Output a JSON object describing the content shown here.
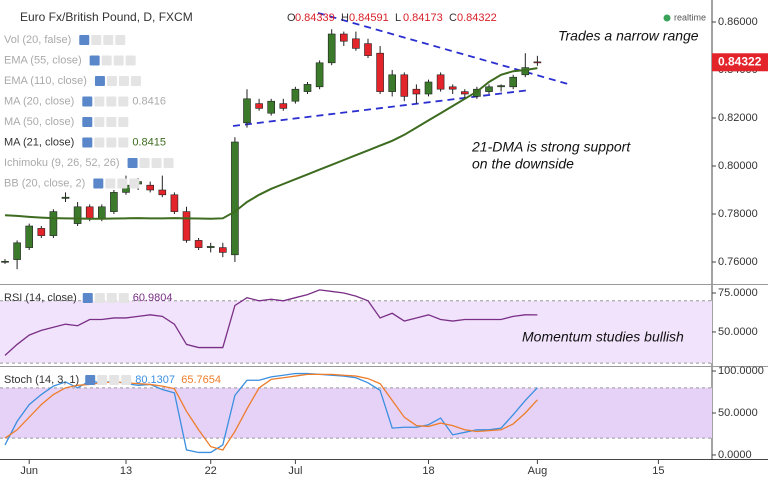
{
  "realtime": "realtime",
  "chart_data": [
    {
      "type": "candlestick",
      "title": "Euro Fx/British Pound, D, FXCM",
      "ohlc_labels": [
        "O",
        "H",
        "L",
        "C"
      ],
      "up_color": "#3b7a2b",
      "down_color": "#e3242b",
      "open": [
        0.76,
        0.761,
        0.766,
        0.774,
        0.771,
        0.7865,
        0.776,
        0.783,
        0.778,
        0.781,
        0.789,
        0.7925,
        0.792,
        0.79,
        0.788,
        0.781,
        0.769,
        0.766,
        0.766,
        0.763,
        0.818,
        0.826,
        0.822,
        0.826,
        0.827,
        0.831,
        0.833,
        0.843,
        0.855,
        0.853,
        0.851,
        0.847,
        0.831,
        0.838,
        0.832,
        0.83,
        0.838,
        0.833,
        0.831,
        0.829,
        0.831,
        0.833,
        0.833,
        0.838,
        0.84339
      ],
      "high": [
        0.7612,
        0.769,
        0.776,
        0.775,
        0.782,
        0.789,
        0.785,
        0.784,
        0.784,
        0.79,
        0.796,
        0.795,
        0.7935,
        0.796,
        0.789,
        0.783,
        0.77,
        0.768,
        0.768,
        0.812,
        0.832,
        0.828,
        0.828,
        0.828,
        0.833,
        0.835,
        0.844,
        0.857,
        0.856,
        0.856,
        0.853,
        0.85,
        0.84,
        0.839,
        0.834,
        0.836,
        0.839,
        0.834,
        0.832,
        0.833,
        0.834,
        0.834,
        0.838,
        0.847,
        0.84591
      ],
      "low": [
        0.7592,
        0.757,
        0.765,
        0.77,
        0.77,
        0.785,
        0.775,
        0.777,
        0.777,
        0.78,
        0.788,
        0.79,
        0.789,
        0.787,
        0.78,
        0.768,
        0.765,
        0.764,
        0.762,
        0.76,
        0.816,
        0.823,
        0.821,
        0.823,
        0.826,
        0.83,
        0.832,
        0.842,
        0.85,
        0.848,
        0.845,
        0.83,
        0.829,
        0.827,
        0.826,
        0.829,
        0.831,
        0.83,
        0.828,
        0.828,
        0.83,
        0.831,
        0.832,
        0.837,
        0.84173
      ],
      "close": [
        0.7603,
        0.768,
        0.775,
        0.771,
        0.781,
        0.787,
        0.783,
        0.778,
        0.783,
        0.789,
        0.792,
        0.7935,
        0.79,
        0.788,
        0.781,
        0.769,
        0.766,
        0.7665,
        0.764,
        0.81,
        0.828,
        0.824,
        0.827,
        0.824,
        0.832,
        0.834,
        0.843,
        0.855,
        0.852,
        0.849,
        0.846,
        0.831,
        0.838,
        0.829,
        0.83,
        0.835,
        0.832,
        0.832,
        0.83,
        0.832,
        0.833,
        0.8335,
        0.837,
        0.841,
        0.84322
      ],
      "ma_line": {
        "color": "#3d6b1f",
        "values": [
          0.7795,
          0.7792,
          0.7788,
          0.7785,
          0.7783,
          0.7782,
          0.7781,
          0.778,
          0.778,
          0.7781,
          0.7782,
          0.7783,
          0.7782,
          0.7782,
          0.7783,
          0.7782,
          0.7781,
          0.778,
          0.7782,
          0.781,
          0.785,
          0.788,
          0.7905,
          0.7925,
          0.7945,
          0.7965,
          0.7985,
          0.8005,
          0.8025,
          0.8045,
          0.8065,
          0.8085,
          0.8105,
          0.813,
          0.816,
          0.819,
          0.822,
          0.825,
          0.828,
          0.831,
          0.835,
          0.838,
          0.8395,
          0.84,
          0.8408
        ]
      },
      "ylim": [
        0.75125,
        0.86917
      ],
      "yticks": [
        {
          "value": 0.86,
          "label": "0.86000"
        },
        {
          "value": 0.84,
          "label": "0.84000"
        },
        {
          "value": 0.82,
          "label": "0.82000"
        },
        {
          "value": 0.8,
          "label": "0.80000"
        },
        {
          "value": 0.78,
          "label": "0.78000"
        },
        {
          "value": 0.76,
          "label": "0.76000"
        }
      ],
      "indicators": [
        {
          "name": "Vol (20, false)"
        },
        {
          "name": "EMA (55, close)"
        },
        {
          "name": "EMA (110, close)"
        },
        {
          "name": "MA (20, close)",
          "value": 0.8416
        },
        {
          "name": "MA (50, close)"
        },
        {
          "name": "MA (21, close)",
          "value": 0.8415
        },
        {
          "name": "Ichimoku (9, 26, 52, 26)"
        },
        {
          "name": "BB (20, close, 2)"
        }
      ],
      "annotations": [
        "Trades a narrow range",
        "21-DMA is strong support",
        "on the downside"
      ]
    },
    {
      "type": "line",
      "name": "RSI (14, close)",
      "band": [
        30,
        70
      ],
      "band_color": "#f1e3fb",
      "series": [
        {
          "color": "#7a2f87",
          "values": [
            35,
            42,
            48,
            51,
            53,
            55,
            54,
            58,
            58,
            59,
            59,
            60,
            61,
            60,
            55,
            42,
            40,
            40,
            40,
            67,
            72,
            70,
            71,
            70,
            72,
            74,
            77,
            76,
            75,
            73,
            70,
            59,
            62,
            57,
            59,
            61,
            58,
            57,
            58,
            58,
            58,
            58,
            60,
            61,
            60.9804
          ]
        }
      ],
      "ylim": [
        28.8,
        79.5
      ],
      "yticks": [
        {
          "value": 75,
          "label": "75.0000"
        },
        {
          "value": 50,
          "label": "50.0000"
        }
      ],
      "annotations": [
        "Momentum studies bullish"
      ]
    },
    {
      "type": "line",
      "name": "Stoch (14, 3, 1)",
      "band": [
        20,
        80
      ],
      "band_color": "#e6d2f7",
      "series": [
        {
          "color": "#3b8fe0",
          "values": [
            12,
            40,
            60,
            72,
            82,
            87,
            80,
            88,
            86,
            88,
            85,
            83,
            84,
            78,
            74,
            6,
            3,
            3,
            12,
            71,
            89,
            89,
            93,
            95,
            97,
            97,
            96,
            95,
            94,
            92,
            86,
            77,
            32,
            33,
            33,
            36,
            44,
            24,
            27,
            30,
            30,
            32,
            48,
            65,
            80.1307
          ]
        },
        {
          "color": "#ee7d2b",
          "values": [
            20,
            30,
            45,
            60,
            72,
            80,
            83,
            84,
            86,
            87,
            86,
            85,
            84,
            82,
            79,
            52,
            30,
            10,
            6,
            28,
            55,
            80,
            90,
            92,
            94,
            96,
            96,
            96,
            95,
            94,
            91,
            85,
            65,
            45,
            35,
            34,
            38,
            35,
            30,
            28,
            29,
            30,
            37,
            50,
            65.7654
          ]
        }
      ],
      "ylim": [
        -3.6,
        103.6
      ],
      "yticks": [
        {
          "value": 100,
          "label": "100.0000"
        },
        {
          "value": 50,
          "label": "50.0000"
        },
        {
          "value": 0,
          "label": "0.0000"
        }
      ],
      "xticks": [
        {
          "value": 2,
          "label": "Jun"
        },
        {
          "value": 10,
          "label": "13"
        },
        {
          "value": 17,
          "label": "22"
        },
        {
          "value": 24,
          "label": "Jul"
        },
        {
          "value": 35,
          "label": "18"
        },
        {
          "value": 44,
          "label": "Aug"
        },
        {
          "value": 54,
          "label": "15"
        }
      ]
    }
  ]
}
